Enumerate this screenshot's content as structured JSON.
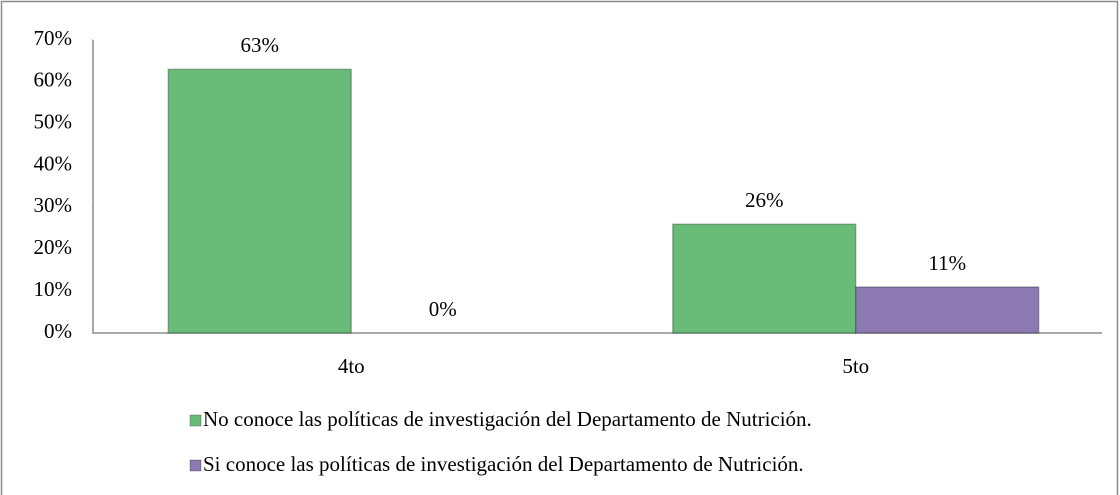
{
  "chart_data": {
    "type": "bar",
    "categories": [
      "4to",
      "5to"
    ],
    "series": [
      {
        "name": "No conoce las políticas de investigación del Departamento de Nutrición.",
        "color": "#69bb78",
        "values": [
          63,
          26
        ],
        "value_labels": [
          "63%",
          "26%"
        ]
      },
      {
        "name": "Si conoce las políticas de investigación del Departamento de Nutrición.",
        "color": "#8c79b2",
        "values": [
          0,
          11
        ],
        "value_labels": [
          "0%",
          "11%"
        ]
      }
    ],
    "ylim": [
      0,
      70
    ],
    "yticks": [
      {
        "value": 0,
        "label": "0%"
      },
      {
        "value": 10,
        "label": "10%"
      },
      {
        "value": 20,
        "label": "20%"
      },
      {
        "value": 30,
        "label": "30%"
      },
      {
        "value": 40,
        "label": "40%"
      },
      {
        "value": 50,
        "label": "50%"
      },
      {
        "value": 60,
        "label": "60%"
      },
      {
        "value": 70,
        "label": "70%"
      }
    ],
    "grid": false,
    "legend": "bottom"
  }
}
